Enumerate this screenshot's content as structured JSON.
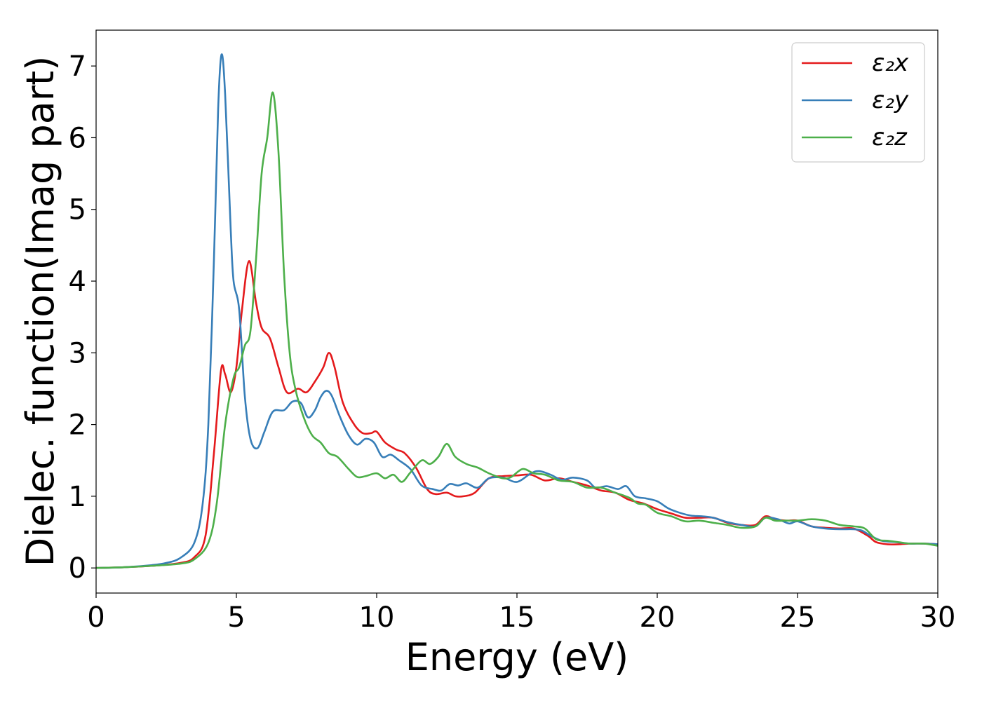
{
  "chart_data": {
    "type": "line",
    "title": "",
    "xlabel": "Energy (eV)",
    "ylabel": "Dielec. function(Imag part)",
    "xlim": [
      0,
      30
    ],
    "ylim": [
      -0.35,
      7.5
    ],
    "xticks": [
      0,
      5,
      10,
      15,
      20,
      25,
      30
    ],
    "yticks": [
      0,
      1,
      2,
      3,
      4,
      5,
      6,
      7
    ],
    "grid": false,
    "legend_position": "top-right",
    "series": [
      {
        "name": "ε₂x",
        "color": "#e41a1c",
        "points": [
          [
            0,
            0
          ],
          [
            1,
            0.01
          ],
          [
            2,
            0.03
          ],
          [
            3,
            0.07
          ],
          [
            3.5,
            0.15
          ],
          [
            3.9,
            0.45
          ],
          [
            4.2,
            1.6
          ],
          [
            4.45,
            2.75
          ],
          [
            4.6,
            2.7
          ],
          [
            4.8,
            2.45
          ],
          [
            5.0,
            2.8
          ],
          [
            5.2,
            3.6
          ],
          [
            5.45,
            4.28
          ],
          [
            5.7,
            3.7
          ],
          [
            5.9,
            3.35
          ],
          [
            6.2,
            3.2
          ],
          [
            6.5,
            2.8
          ],
          [
            6.8,
            2.45
          ],
          [
            7.2,
            2.5
          ],
          [
            7.5,
            2.45
          ],
          [
            7.8,
            2.6
          ],
          [
            8.1,
            2.8
          ],
          [
            8.3,
            3.0
          ],
          [
            8.5,
            2.8
          ],
          [
            8.8,
            2.3
          ],
          [
            9.2,
            2.0
          ],
          [
            9.5,
            1.88
          ],
          [
            9.8,
            1.88
          ],
          [
            10.0,
            1.9
          ],
          [
            10.3,
            1.75
          ],
          [
            10.7,
            1.65
          ],
          [
            11.0,
            1.6
          ],
          [
            11.4,
            1.4
          ],
          [
            11.8,
            1.1
          ],
          [
            12.1,
            1.03
          ],
          [
            12.5,
            1.05
          ],
          [
            12.8,
            1.0
          ],
          [
            13.1,
            1.0
          ],
          [
            13.5,
            1.05
          ],
          [
            14.0,
            1.25
          ],
          [
            14.5,
            1.28
          ],
          [
            15.0,
            1.29
          ],
          [
            15.5,
            1.3
          ],
          [
            16.0,
            1.22
          ],
          [
            16.5,
            1.25
          ],
          [
            17.0,
            1.2
          ],
          [
            17.5,
            1.15
          ],
          [
            18.0,
            1.08
          ],
          [
            18.5,
            1.05
          ],
          [
            19.0,
            0.95
          ],
          [
            19.5,
            0.9
          ],
          [
            20.0,
            0.82
          ],
          [
            20.5,
            0.76
          ],
          [
            21.0,
            0.7
          ],
          [
            21.5,
            0.7
          ],
          [
            22.0,
            0.7
          ],
          [
            22.5,
            0.63
          ],
          [
            23.0,
            0.6
          ],
          [
            23.5,
            0.6
          ],
          [
            23.85,
            0.72
          ],
          [
            24.2,
            0.68
          ],
          [
            24.6,
            0.66
          ],
          [
            25.0,
            0.66
          ],
          [
            25.5,
            0.58
          ],
          [
            26.0,
            0.56
          ],
          [
            26.5,
            0.55
          ],
          [
            27.0,
            0.55
          ],
          [
            27.5,
            0.45
          ],
          [
            27.8,
            0.36
          ],
          [
            28.2,
            0.33
          ],
          [
            28.6,
            0.33
          ],
          [
            29.0,
            0.34
          ],
          [
            29.5,
            0.34
          ],
          [
            30.0,
            0.33
          ]
        ]
      },
      {
        "name": "ε₂y",
        "color": "#377eb8",
        "points": [
          [
            0,
            0
          ],
          [
            1,
            0.01
          ],
          [
            2,
            0.04
          ],
          [
            2.5,
            0.07
          ],
          [
            3.0,
            0.14
          ],
          [
            3.5,
            0.35
          ],
          [
            3.8,
            0.9
          ],
          [
            4.0,
            2.0
          ],
          [
            4.2,
            4.3
          ],
          [
            4.35,
            6.4
          ],
          [
            4.47,
            7.16
          ],
          [
            4.6,
            6.6
          ],
          [
            4.8,
            4.7
          ],
          [
            4.9,
            4.0
          ],
          [
            5.1,
            3.6
          ],
          [
            5.3,
            2.4
          ],
          [
            5.5,
            1.8
          ],
          [
            5.75,
            1.67
          ],
          [
            6.0,
            1.9
          ],
          [
            6.3,
            2.18
          ],
          [
            6.7,
            2.2
          ],
          [
            7.0,
            2.32
          ],
          [
            7.3,
            2.3
          ],
          [
            7.55,
            2.1
          ],
          [
            7.8,
            2.2
          ],
          [
            8.0,
            2.38
          ],
          [
            8.2,
            2.47
          ],
          [
            8.4,
            2.4
          ],
          [
            8.7,
            2.1
          ],
          [
            9.0,
            1.85
          ],
          [
            9.3,
            1.72
          ],
          [
            9.6,
            1.8
          ],
          [
            9.9,
            1.75
          ],
          [
            10.2,
            1.55
          ],
          [
            10.5,
            1.58
          ],
          [
            10.8,
            1.5
          ],
          [
            11.2,
            1.38
          ],
          [
            11.6,
            1.15
          ],
          [
            12.0,
            1.1
          ],
          [
            12.3,
            1.08
          ],
          [
            12.6,
            1.17
          ],
          [
            12.9,
            1.15
          ],
          [
            13.2,
            1.18
          ],
          [
            13.6,
            1.12
          ],
          [
            14.0,
            1.25
          ],
          [
            14.5,
            1.26
          ],
          [
            15.0,
            1.2
          ],
          [
            15.5,
            1.32
          ],
          [
            15.8,
            1.35
          ],
          [
            16.2,
            1.3
          ],
          [
            16.6,
            1.23
          ],
          [
            17.0,
            1.26
          ],
          [
            17.5,
            1.22
          ],
          [
            17.8,
            1.12
          ],
          [
            18.2,
            1.14
          ],
          [
            18.6,
            1.1
          ],
          [
            18.9,
            1.14
          ],
          [
            19.2,
            1.0
          ],
          [
            19.6,
            0.97
          ],
          [
            20.0,
            0.93
          ],
          [
            20.4,
            0.83
          ],
          [
            20.8,
            0.77
          ],
          [
            21.2,
            0.73
          ],
          [
            21.6,
            0.72
          ],
          [
            22.0,
            0.7
          ],
          [
            22.5,
            0.64
          ],
          [
            23.0,
            0.6
          ],
          [
            23.5,
            0.58
          ],
          [
            23.85,
            0.7
          ],
          [
            24.3,
            0.68
          ],
          [
            24.7,
            0.62
          ],
          [
            25.0,
            0.65
          ],
          [
            25.5,
            0.58
          ],
          [
            26.0,
            0.55
          ],
          [
            26.5,
            0.54
          ],
          [
            27.0,
            0.54
          ],
          [
            27.3,
            0.52
          ],
          [
            27.6,
            0.45
          ],
          [
            28.0,
            0.38
          ],
          [
            28.5,
            0.36
          ],
          [
            29.0,
            0.34
          ],
          [
            29.5,
            0.34
          ],
          [
            30.0,
            0.33
          ]
        ]
      },
      {
        "name": "ε₂z",
        "color": "#4daf4a",
        "points": [
          [
            0,
            0
          ],
          [
            1,
            0.01
          ],
          [
            2,
            0.03
          ],
          [
            3,
            0.06
          ],
          [
            3.5,
            0.12
          ],
          [
            4.0,
            0.35
          ],
          [
            4.3,
            0.9
          ],
          [
            4.6,
            2.0
          ],
          [
            4.9,
            2.65
          ],
          [
            5.1,
            2.8
          ],
          [
            5.3,
            3.1
          ],
          [
            5.5,
            3.3
          ],
          [
            5.7,
            4.3
          ],
          [
            5.9,
            5.5
          ],
          [
            6.1,
            6.0
          ],
          [
            6.3,
            6.63
          ],
          [
            6.5,
            5.8
          ],
          [
            6.7,
            4.1
          ],
          [
            6.9,
            3.0
          ],
          [
            7.1,
            2.5
          ],
          [
            7.4,
            2.1
          ],
          [
            7.7,
            1.85
          ],
          [
            8.0,
            1.75
          ],
          [
            8.3,
            1.6
          ],
          [
            8.6,
            1.55
          ],
          [
            9.0,
            1.38
          ],
          [
            9.3,
            1.27
          ],
          [
            9.6,
            1.28
          ],
          [
            10.0,
            1.32
          ],
          [
            10.3,
            1.25
          ],
          [
            10.6,
            1.3
          ],
          [
            10.9,
            1.2
          ],
          [
            11.2,
            1.33
          ],
          [
            11.6,
            1.5
          ],
          [
            11.9,
            1.45
          ],
          [
            12.2,
            1.55
          ],
          [
            12.5,
            1.73
          ],
          [
            12.8,
            1.55
          ],
          [
            13.2,
            1.45
          ],
          [
            13.6,
            1.4
          ],
          [
            14.0,
            1.32
          ],
          [
            14.5,
            1.25
          ],
          [
            14.8,
            1.27
          ],
          [
            15.2,
            1.38
          ],
          [
            15.6,
            1.32
          ],
          [
            16.0,
            1.3
          ],
          [
            16.5,
            1.22
          ],
          [
            17.0,
            1.2
          ],
          [
            17.5,
            1.12
          ],
          [
            18.0,
            1.12
          ],
          [
            18.5,
            1.05
          ],
          [
            19.0,
            0.98
          ],
          [
            19.3,
            0.9
          ],
          [
            19.6,
            0.88
          ],
          [
            20.0,
            0.77
          ],
          [
            20.5,
            0.72
          ],
          [
            21.0,
            0.65
          ],
          [
            21.5,
            0.66
          ],
          [
            22.0,
            0.63
          ],
          [
            22.5,
            0.6
          ],
          [
            23.0,
            0.56
          ],
          [
            23.5,
            0.58
          ],
          [
            23.85,
            0.7
          ],
          [
            24.2,
            0.66
          ],
          [
            24.6,
            0.66
          ],
          [
            25.0,
            0.66
          ],
          [
            25.5,
            0.68
          ],
          [
            26.0,
            0.66
          ],
          [
            26.5,
            0.6
          ],
          [
            27.0,
            0.58
          ],
          [
            27.4,
            0.55
          ],
          [
            27.8,
            0.4
          ],
          [
            28.2,
            0.38
          ],
          [
            28.6,
            0.36
          ],
          [
            29.0,
            0.34
          ],
          [
            29.5,
            0.34
          ],
          [
            30.0,
            0.31
          ]
        ]
      }
    ]
  }
}
